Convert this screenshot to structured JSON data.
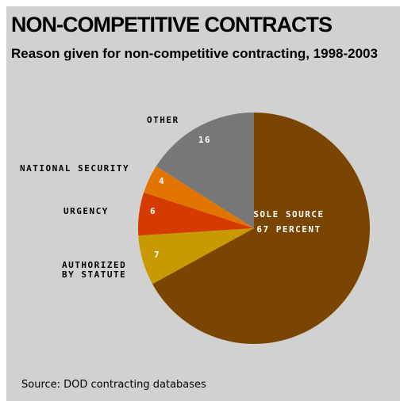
{
  "chart_data": {
    "type": "pie",
    "title": "NON-COMPETITIVE CONTRACTS",
    "subtitle": "Reason given for non-competitive contracting, 1998-2003",
    "unit": "percent",
    "slices": [
      {
        "name": "SOLE SOURCE",
        "value": 67,
        "label": [
          "SOLE SOURCE",
          "67 PERCENT"
        ],
        "color": "#7a4500"
      },
      {
        "name": "AUTHORIZED BY STATUTE",
        "value": 7,
        "label": [
          "7"
        ],
        "callout": [
          "AUTHORIZED",
          "BY STATUTE"
        ],
        "color": "#c89a00"
      },
      {
        "name": "URGENCY",
        "value": 6,
        "label": [
          "6"
        ],
        "callout": [
          "URGENCY"
        ],
        "color": "#d53a00"
      },
      {
        "name": "NATIONAL SECURITY",
        "value": 4,
        "label": [
          "4"
        ],
        "callout": [
          "NATIONAL SECURITY"
        ],
        "color": "#e27400"
      },
      {
        "name": "OTHER",
        "value": 16,
        "label": [
          "16"
        ],
        "callout": [
          "OTHER"
        ],
        "color": "#777777"
      }
    ],
    "source": "Source: DOD contracting databases"
  }
}
